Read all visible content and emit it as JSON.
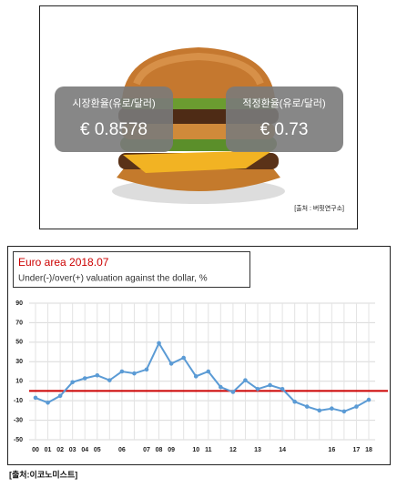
{
  "panel": {
    "market_label": "시장환율(유로/달러)",
    "market_value": "€ 0.8578",
    "fair_label": "적정환율(유로/달러)",
    "fair_value": "€ 0.73",
    "source": "[출처 : 버핏연구소]"
  },
  "chart_data": {
    "type": "line",
    "title": "Euro area 2018.07",
    "subtitle": "Under(-)/over(+) valuation against the dollar, %",
    "categories": [
      "00",
      "01",
      "02",
      "03",
      "04",
      "05",
      null,
      "06",
      null,
      "07",
      "08",
      "09",
      null,
      "10",
      "11",
      null,
      "12",
      null,
      "13",
      null,
      "14",
      null,
      null,
      null,
      "16",
      null,
      "17",
      "18"
    ],
    "series": [
      {
        "name": "Euro",
        "color": "#5b9bd5",
        "values": [
          -7,
          -12,
          -5,
          9,
          13,
          16,
          11,
          20,
          18,
          22,
          49,
          28,
          34,
          15,
          20,
          4,
          -1,
          11,
          2,
          6,
          2,
          -11,
          -16,
          -20,
          -18,
          -21,
          -16,
          -9
        ]
      }
    ],
    "ylim": [
      -50,
      90
    ],
    "yticks": [
      90,
      70,
      50,
      30,
      10,
      -10,
      -30,
      -50
    ],
    "grid": true,
    "reference_line": 0,
    "reference_color": "#cc0000"
  },
  "caption": "[출처:이코노미스트]"
}
